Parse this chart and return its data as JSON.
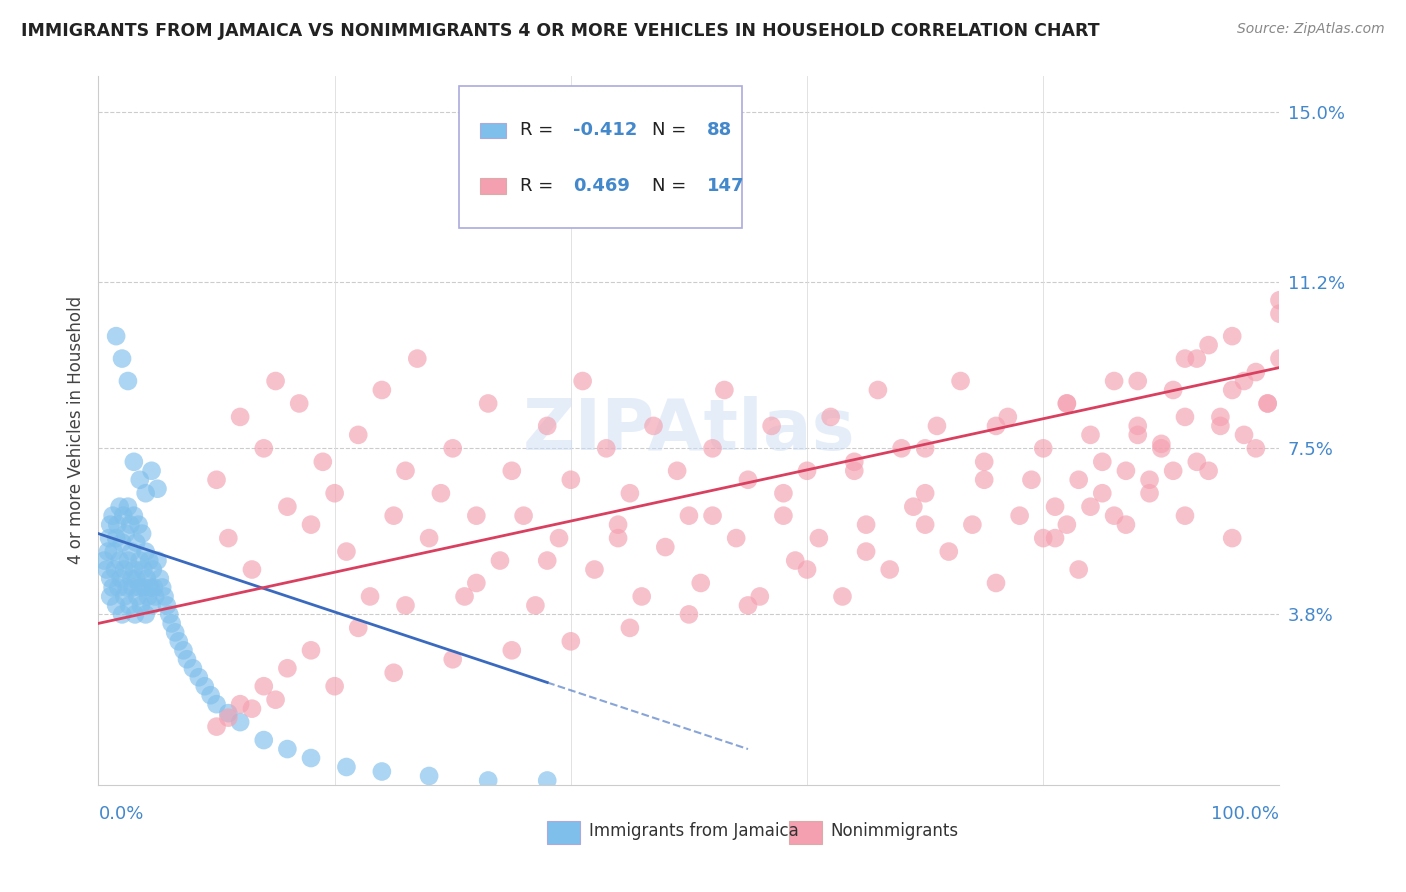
{
  "title": "IMMIGRANTS FROM JAMAICA VS NONIMMIGRANTS 4 OR MORE VEHICLES IN HOUSEHOLD CORRELATION CHART",
  "source": "Source: ZipAtlas.com",
  "ylabel": "4 or more Vehicles in Household",
  "xlim": [
    0.0,
    1.0
  ],
  "ylim": [
    0.0,
    0.158
  ],
  "ytick_vals": [
    0.038,
    0.075,
    0.112,
    0.15
  ],
  "ytick_labels": [
    "3.8%",
    "7.5%",
    "11.2%",
    "15.0%"
  ],
  "legend_color1": "#7fbfeb",
  "legend_color2": "#f4a0b0",
  "series1_color": "#7fbfeb",
  "series2_color": "#f4a0b0",
  "trendline1_color": "#3a6abf",
  "trendline2_color": "#d94060",
  "watermark_color": "#ccddf5",
  "blue_x": [
    0.005,
    0.007,
    0.008,
    0.009,
    0.01,
    0.01,
    0.01,
    0.012,
    0.012,
    0.013,
    0.014,
    0.015,
    0.015,
    0.016,
    0.017,
    0.018,
    0.018,
    0.019,
    0.02,
    0.02,
    0.021,
    0.022,
    0.022,
    0.023,
    0.024,
    0.025,
    0.025,
    0.026,
    0.027,
    0.028,
    0.028,
    0.029,
    0.03,
    0.03,
    0.031,
    0.032,
    0.032,
    0.033,
    0.034,
    0.035,
    0.035,
    0.036,
    0.037,
    0.038,
    0.039,
    0.04,
    0.04,
    0.041,
    0.042,
    0.043,
    0.044,
    0.045,
    0.046,
    0.047,
    0.048,
    0.05,
    0.052,
    0.054,
    0.056,
    0.058,
    0.06,
    0.062,
    0.065,
    0.068,
    0.072,
    0.075,
    0.08,
    0.085,
    0.09,
    0.095,
    0.1,
    0.11,
    0.12,
    0.14,
    0.16,
    0.18,
    0.21,
    0.24,
    0.28,
    0.33,
    0.38,
    0.03,
    0.035,
    0.04,
    0.045,
    0.05,
    0.015,
    0.02,
    0.025
  ],
  "blue_y": [
    0.05,
    0.048,
    0.052,
    0.055,
    0.058,
    0.042,
    0.046,
    0.06,
    0.044,
    0.052,
    0.048,
    0.055,
    0.04,
    0.058,
    0.044,
    0.05,
    0.062,
    0.046,
    0.054,
    0.038,
    0.06,
    0.048,
    0.042,
    0.056,
    0.044,
    0.05,
    0.062,
    0.04,
    0.058,
    0.046,
    0.052,
    0.044,
    0.048,
    0.06,
    0.038,
    0.054,
    0.046,
    0.042,
    0.058,
    0.05,
    0.044,
    0.04,
    0.056,
    0.048,
    0.044,
    0.052,
    0.038,
    0.046,
    0.042,
    0.05,
    0.044,
    0.04,
    0.048,
    0.044,
    0.042,
    0.05,
    0.046,
    0.044,
    0.042,
    0.04,
    0.038,
    0.036,
    0.034,
    0.032,
    0.03,
    0.028,
    0.026,
    0.024,
    0.022,
    0.02,
    0.018,
    0.016,
    0.014,
    0.01,
    0.008,
    0.006,
    0.004,
    0.003,
    0.002,
    0.001,
    0.001,
    0.072,
    0.068,
    0.065,
    0.07,
    0.066,
    0.1,
    0.095,
    0.09
  ],
  "pink_x": [
    0.1,
    0.11,
    0.12,
    0.13,
    0.14,
    0.15,
    0.16,
    0.17,
    0.18,
    0.19,
    0.2,
    0.21,
    0.22,
    0.23,
    0.24,
    0.25,
    0.26,
    0.27,
    0.28,
    0.29,
    0.3,
    0.31,
    0.32,
    0.33,
    0.34,
    0.35,
    0.36,
    0.37,
    0.38,
    0.39,
    0.4,
    0.41,
    0.42,
    0.43,
    0.44,
    0.45,
    0.46,
    0.47,
    0.48,
    0.49,
    0.5,
    0.51,
    0.52,
    0.53,
    0.54,
    0.55,
    0.56,
    0.57,
    0.58,
    0.59,
    0.6,
    0.61,
    0.62,
    0.63,
    0.64,
    0.65,
    0.66,
    0.67,
    0.68,
    0.69,
    0.7,
    0.71,
    0.72,
    0.73,
    0.74,
    0.75,
    0.76,
    0.77,
    0.78,
    0.79,
    0.8,
    0.81,
    0.82,
    0.83,
    0.84,
    0.85,
    0.86,
    0.87,
    0.88,
    0.89,
    0.9,
    0.91,
    0.92,
    0.93,
    0.94,
    0.95,
    0.96,
    0.97,
    0.98,
    0.99,
    1.0,
    1.0,
    0.99,
    0.98,
    0.97,
    0.96,
    0.95,
    0.94,
    0.93,
    0.92,
    0.91,
    0.9,
    0.89,
    0.88,
    0.87,
    0.86,
    0.85,
    0.84,
    0.83,
    0.82,
    0.81,
    0.8,
    0.75,
    0.7,
    0.65,
    0.6,
    0.55,
    0.5,
    0.45,
    0.4,
    0.35,
    0.3,
    0.25,
    0.2,
    0.15,
    0.13,
    0.11,
    0.1,
    0.12,
    0.14,
    0.16,
    0.18,
    0.22,
    0.26,
    0.32,
    0.38,
    0.44,
    0.52,
    0.58,
    0.64,
    0.7,
    0.76,
    0.82,
    0.88,
    0.92,
    0.96,
    1.0
  ],
  "pink_y": [
    0.068,
    0.055,
    0.082,
    0.048,
    0.075,
    0.09,
    0.062,
    0.085,
    0.058,
    0.072,
    0.065,
    0.052,
    0.078,
    0.042,
    0.088,
    0.06,
    0.07,
    0.095,
    0.055,
    0.065,
    0.075,
    0.042,
    0.06,
    0.085,
    0.05,
    0.07,
    0.06,
    0.04,
    0.08,
    0.055,
    0.068,
    0.09,
    0.048,
    0.075,
    0.058,
    0.065,
    0.042,
    0.08,
    0.053,
    0.07,
    0.06,
    0.045,
    0.075,
    0.088,
    0.055,
    0.068,
    0.042,
    0.08,
    0.06,
    0.05,
    0.07,
    0.055,
    0.082,
    0.042,
    0.072,
    0.058,
    0.088,
    0.048,
    0.075,
    0.062,
    0.065,
    0.08,
    0.052,
    0.09,
    0.058,
    0.072,
    0.045,
    0.082,
    0.06,
    0.068,
    0.075,
    0.055,
    0.085,
    0.048,
    0.078,
    0.065,
    0.09,
    0.058,
    0.08,
    0.068,
    0.075,
    0.088,
    0.06,
    0.095,
    0.07,
    0.082,
    0.055,
    0.09,
    0.075,
    0.085,
    0.095,
    0.108,
    0.085,
    0.092,
    0.078,
    0.088,
    0.08,
    0.098,
    0.072,
    0.082,
    0.07,
    0.076,
    0.065,
    0.078,
    0.07,
    0.06,
    0.072,
    0.062,
    0.068,
    0.058,
    0.062,
    0.055,
    0.068,
    0.058,
    0.052,
    0.048,
    0.04,
    0.038,
    0.035,
    0.032,
    0.03,
    0.028,
    0.025,
    0.022,
    0.019,
    0.017,
    0.015,
    0.013,
    0.018,
    0.022,
    0.026,
    0.03,
    0.035,
    0.04,
    0.045,
    0.05,
    0.055,
    0.06,
    0.065,
    0.07,
    0.075,
    0.08,
    0.085,
    0.09,
    0.095,
    0.1,
    0.105
  ],
  "blue_trend_x0": 0.0,
  "blue_trend_x1": 0.55,
  "blue_trend_y0": 0.056,
  "blue_trend_y1": 0.008,
  "pink_trend_x0": 0.0,
  "pink_trend_x1": 1.0,
  "pink_trend_y0": 0.036,
  "pink_trend_y1": 0.093
}
